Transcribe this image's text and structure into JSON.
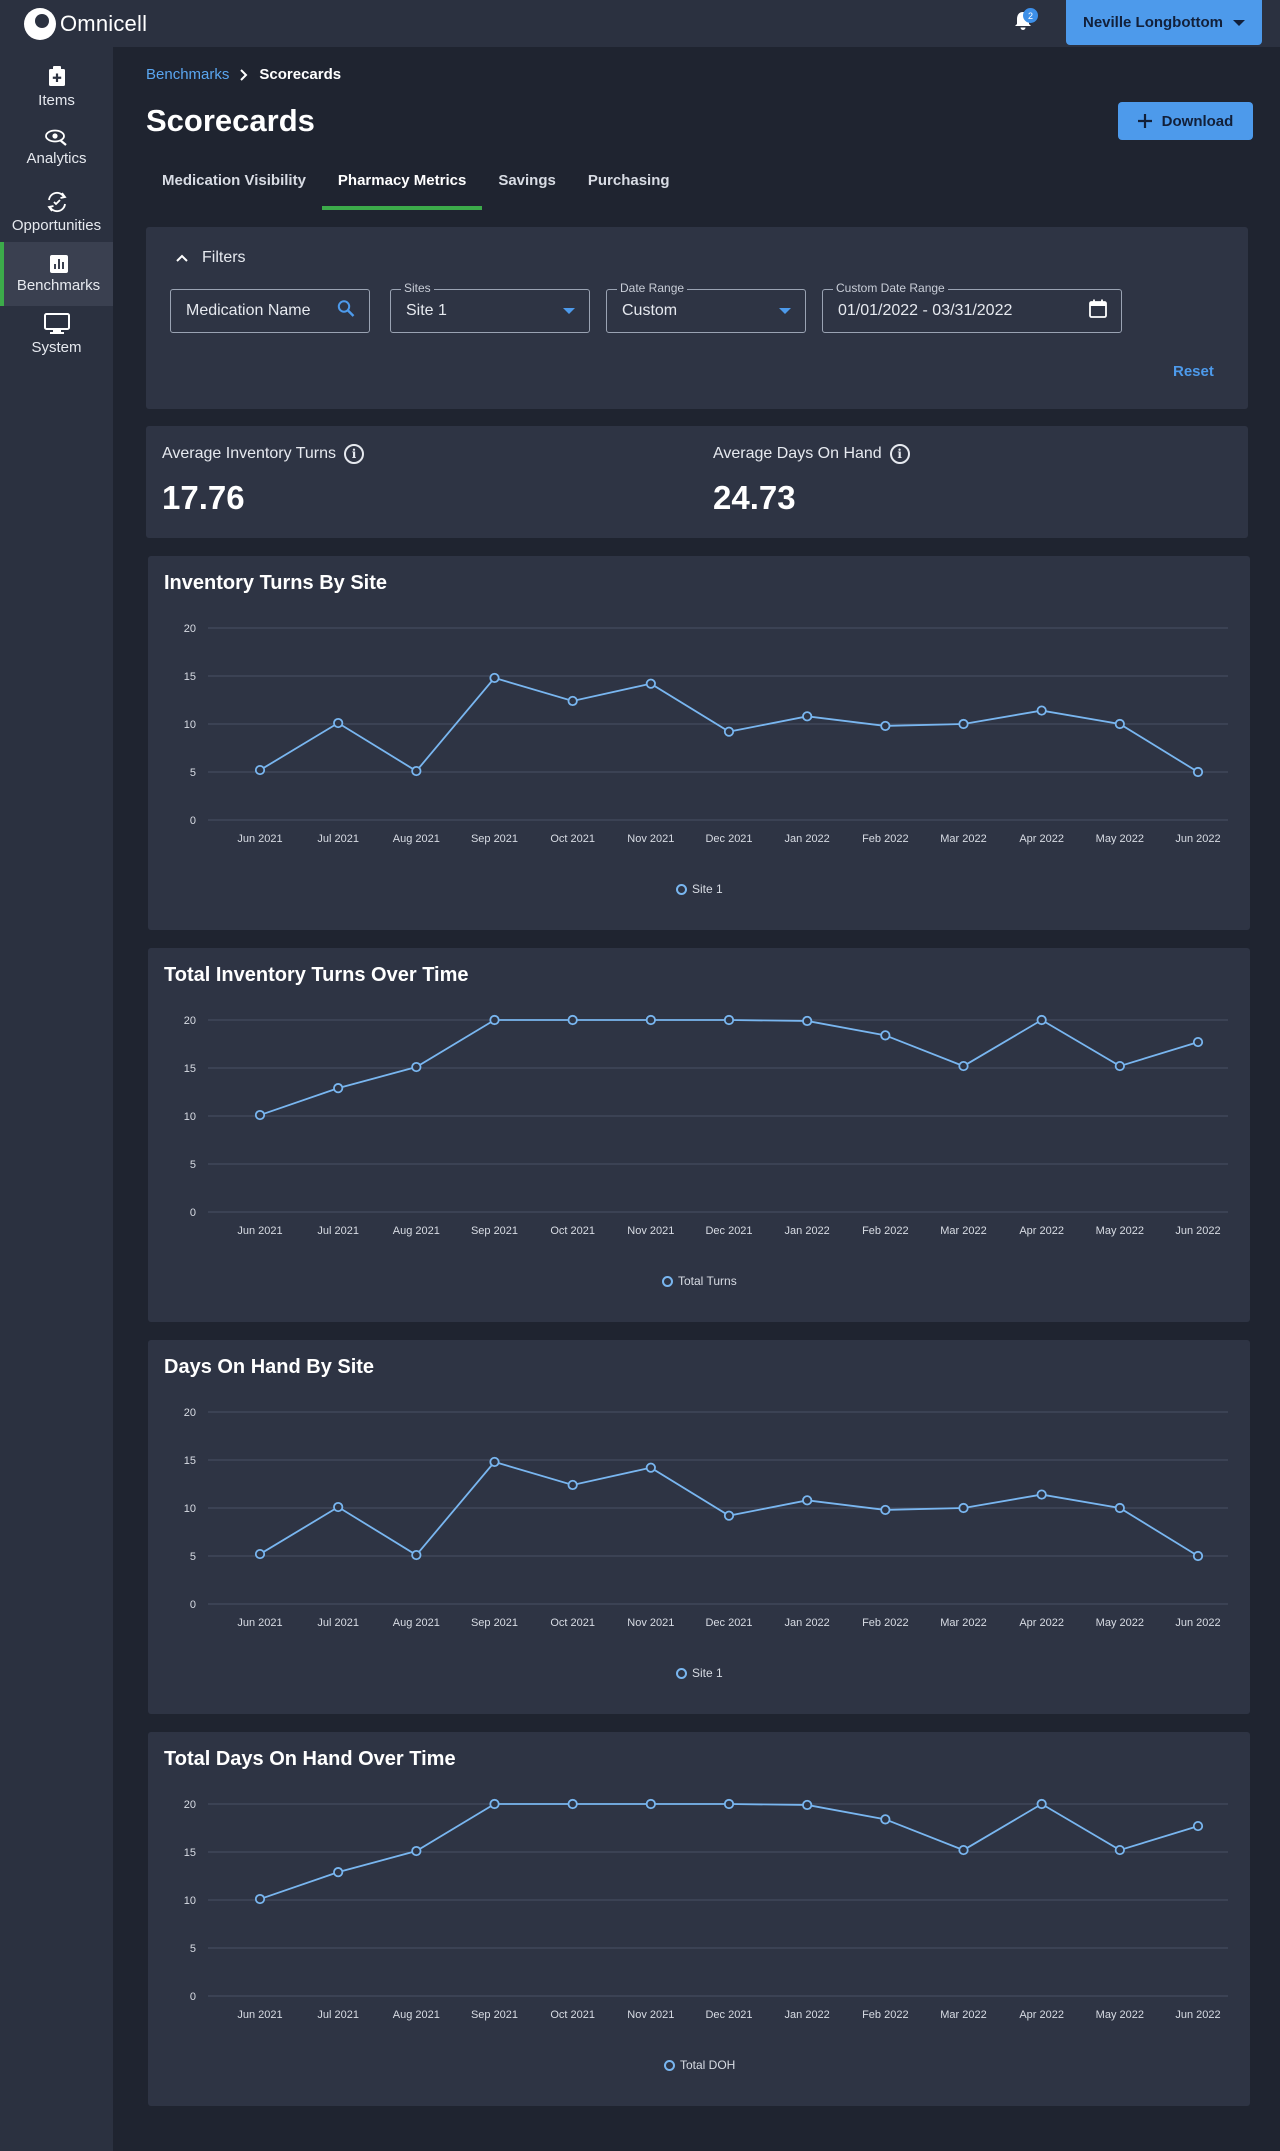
{
  "app": {
    "name": "Omnicell",
    "notifications_count": "2",
    "user_name": "Neville Longbottom"
  },
  "sidebar": {
    "items": [
      {
        "label": "Items",
        "icon": "add-box-icon"
      },
      {
        "label": "Analytics",
        "icon": "analytics-eye-icon"
      },
      {
        "label": "Opportunities",
        "icon": "opportunities-icon"
      },
      {
        "label": "Benchmarks",
        "icon": "bar-chart-icon",
        "active": true
      },
      {
        "label": "System",
        "icon": "monitor-icon"
      }
    ]
  },
  "breadcrumb": {
    "parent": "Benchmarks",
    "current": "Scorecards"
  },
  "page": {
    "title": "Scorecards",
    "download_label": "Download"
  },
  "tabs": [
    "Medication Visibility",
    "Pharmacy Metrics",
    "Savings",
    "Purchasing"
  ],
  "active_tab": "Pharmacy Metrics",
  "filters": {
    "title": "Filters",
    "medication_placeholder": "Medication Name",
    "sites_label": "Sites",
    "sites_value": "Site 1",
    "date_range_label": "Date Range",
    "date_range_value": "Custom",
    "custom_range_label": "Custom Date Range",
    "custom_range_value": "01/01/2022 - 03/31/2022",
    "reset_label": "Reset"
  },
  "kpis": {
    "avg_turns_label": "Average Inventory Turns",
    "avg_turns_value": "17.76",
    "avg_doh_label": "Average Days On Hand",
    "avg_doh_value": "24.73"
  },
  "colors": {
    "accent": "#4d9aeb",
    "active_tab": "#3cab4a",
    "series": "#79b6f0"
  },
  "chart_data": [
    {
      "type": "line",
      "title": "Inventory Turns By Site",
      "categories": [
        "Jun 2021",
        "Jul 2021",
        "Aug 2021",
        "Sep 2021",
        "Oct 2021",
        "Nov 2021",
        "Dec 2021",
        "Jan 2022",
        "Feb 2022",
        "Mar 2022",
        "Apr 2022",
        "May 2022",
        "Jun 2022"
      ],
      "series": [
        {
          "name": "Site 1",
          "values": [
            5.2,
            10.1,
            5.1,
            14.8,
            12.4,
            14.2,
            9.2,
            10.8,
            9.8,
            10.0,
            11.4,
            10.0,
            5.0
          ]
        }
      ],
      "yticks": [
        0,
        5,
        10,
        15,
        20
      ],
      "ylim": [
        0,
        20
      ],
      "grid": true,
      "legend": "bottom-center"
    },
    {
      "type": "line",
      "title": "Total Inventory Turns Over Time",
      "categories": [
        "Jun 2021",
        "Jul 2021",
        "Aug 2021",
        "Sep 2021",
        "Oct 2021",
        "Nov 2021",
        "Dec 2021",
        "Jan 2022",
        "Feb 2022",
        "Mar 2022",
        "Apr 2022",
        "May 2022",
        "Jun 2022"
      ],
      "series": [
        {
          "name": "Total Turns",
          "values": [
            10.1,
            12.9,
            15.1,
            20.0,
            20.0,
            20.0,
            20.0,
            19.9,
            18.4,
            15.2,
            20.0,
            15.2,
            17.7
          ]
        }
      ],
      "yticks": [
        0,
        5,
        10,
        15,
        20
      ],
      "ylim": [
        0,
        20
      ],
      "grid": true,
      "legend": "bottom-center"
    },
    {
      "type": "line",
      "title": "Days On Hand By Site",
      "categories": [
        "Jun 2021",
        "Jul 2021",
        "Aug 2021",
        "Sep 2021",
        "Oct 2021",
        "Nov 2021",
        "Dec 2021",
        "Jan 2022",
        "Feb 2022",
        "Mar 2022",
        "Apr 2022",
        "May 2022",
        "Jun 2022"
      ],
      "series": [
        {
          "name": "Site 1",
          "values": [
            5.2,
            10.1,
            5.1,
            14.8,
            12.4,
            14.2,
            9.2,
            10.8,
            9.8,
            10.0,
            11.4,
            10.0,
            5.0
          ]
        }
      ],
      "yticks": [
        0,
        5,
        10,
        15,
        20
      ],
      "ylim": [
        0,
        20
      ],
      "grid": true,
      "legend": "bottom-center"
    },
    {
      "type": "line",
      "title": "Total Days On Hand Over Time",
      "categories": [
        "Jun 2021",
        "Jul 2021",
        "Aug 2021",
        "Sep 2021",
        "Oct 2021",
        "Nov 2021",
        "Dec 2021",
        "Jan 2022",
        "Feb 2022",
        "Mar 2022",
        "Apr 2022",
        "May 2022",
        "Jun 2022"
      ],
      "series": [
        {
          "name": "Total DOH",
          "values": [
            10.1,
            12.9,
            15.1,
            20.0,
            20.0,
            20.0,
            20.0,
            19.9,
            18.4,
            15.2,
            20.0,
            15.2,
            17.7
          ]
        }
      ],
      "yticks": [
        0,
        5,
        10,
        15,
        20
      ],
      "ylim": [
        0,
        20
      ],
      "grid": true,
      "legend": "bottom-center"
    }
  ]
}
